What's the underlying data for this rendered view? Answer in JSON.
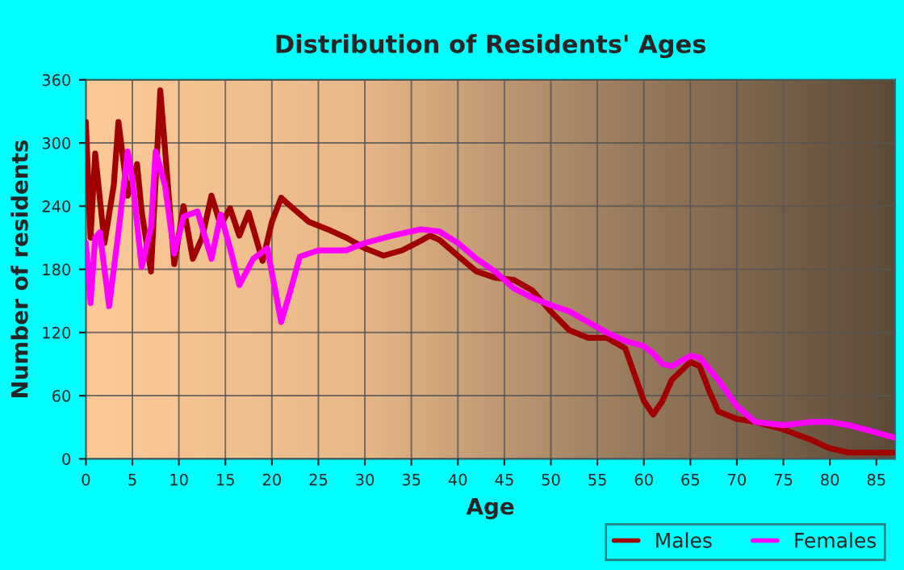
{
  "chart_data": {
    "type": "line",
    "title": "Distribution of Residents' Ages",
    "xlabel": "Age",
    "ylabel": "Number of residents",
    "xlim": [
      0,
      87
    ],
    "xticks": [
      0,
      5,
      10,
      15,
      20,
      25,
      30,
      35,
      40,
      45,
      50,
      55,
      60,
      65,
      70,
      75,
      80,
      85
    ],
    "ylim": [
      0,
      360
    ],
    "yticks": [
      0,
      60,
      120,
      180,
      240,
      300,
      360
    ],
    "grid": true,
    "legend": "bottom right",
    "series": [
      {
        "name": "Males",
        "color": "#a00000",
        "x": [
          0,
          0.5,
          1,
          2,
          3,
          3.5,
          4.5,
          5.5,
          6,
          7,
          8,
          9,
          9.5,
          10.5,
          11.5,
          12.5,
          13.5,
          14.5,
          15.5,
          16.5,
          17.5,
          19,
          20,
          21,
          22,
          24,
          26,
          28,
          30,
          32,
          34,
          36,
          37,
          38,
          40,
          42,
          44,
          46,
          48,
          50,
          52,
          54,
          56,
          58,
          60,
          61,
          62,
          63,
          65,
          66,
          67,
          68,
          70,
          72,
          75,
          78,
          80,
          82,
          87
        ],
        "values": [
          320,
          210,
          290,
          205,
          260,
          320,
          250,
          280,
          235,
          178,
          350,
          240,
          185,
          240,
          190,
          210,
          250,
          222,
          238,
          212,
          234,
          188,
          225,
          248,
          240,
          225,
          218,
          210,
          200,
          193,
          198,
          207,
          212,
          208,
          193,
          178,
          172,
          170,
          160,
          140,
          122,
          115,
          115,
          105,
          55,
          42,
          55,
          75,
          92,
          88,
          65,
          45,
          38,
          35,
          28,
          18,
          10,
          6,
          6
        ]
      },
      {
        "name": "Females",
        "color": "#ff00ff",
        "x": [
          0,
          0.5,
          1,
          1.5,
          2.5,
          3.5,
          4.5,
          5,
          6,
          7,
          7.5,
          8.5,
          9.5,
          10.5,
          12,
          13.5,
          14.5,
          15.5,
          16.5,
          18,
          19.5,
          21,
          22,
          23,
          25,
          28,
          30,
          33,
          36,
          38,
          40,
          42,
          44,
          46,
          48,
          50,
          52,
          54,
          56,
          58,
          60,
          61,
          62,
          63,
          65,
          66,
          68,
          70,
          72,
          75,
          78,
          80,
          82,
          85,
          87
        ],
        "values": [
          205,
          148,
          210,
          215,
          145,
          215,
          292,
          265,
          182,
          220,
          292,
          260,
          195,
          230,
          235,
          190,
          232,
          200,
          165,
          190,
          200,
          130,
          160,
          192,
          198,
          198,
          205,
          212,
          218,
          216,
          205,
          190,
          178,
          162,
          153,
          146,
          140,
          130,
          120,
          112,
          107,
          100,
          90,
          88,
          98,
          96,
          75,
          50,
          35,
          32,
          35,
          35,
          32,
          25,
          20
        ]
      }
    ]
  }
}
